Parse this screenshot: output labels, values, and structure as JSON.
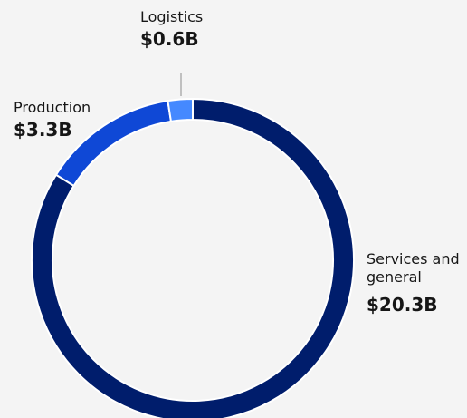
{
  "chart_data": {
    "type": "donut",
    "categories": [
      "Services and general",
      "Production",
      "Logistics"
    ],
    "values": [
      20.3,
      3.3,
      0.6
    ],
    "value_labels": [
      "$20.3B",
      "$3.3B",
      "$0.6B"
    ],
    "colors": [
      "#001d6c",
      "#0f48d6",
      "#4589ff"
    ]
  }
}
